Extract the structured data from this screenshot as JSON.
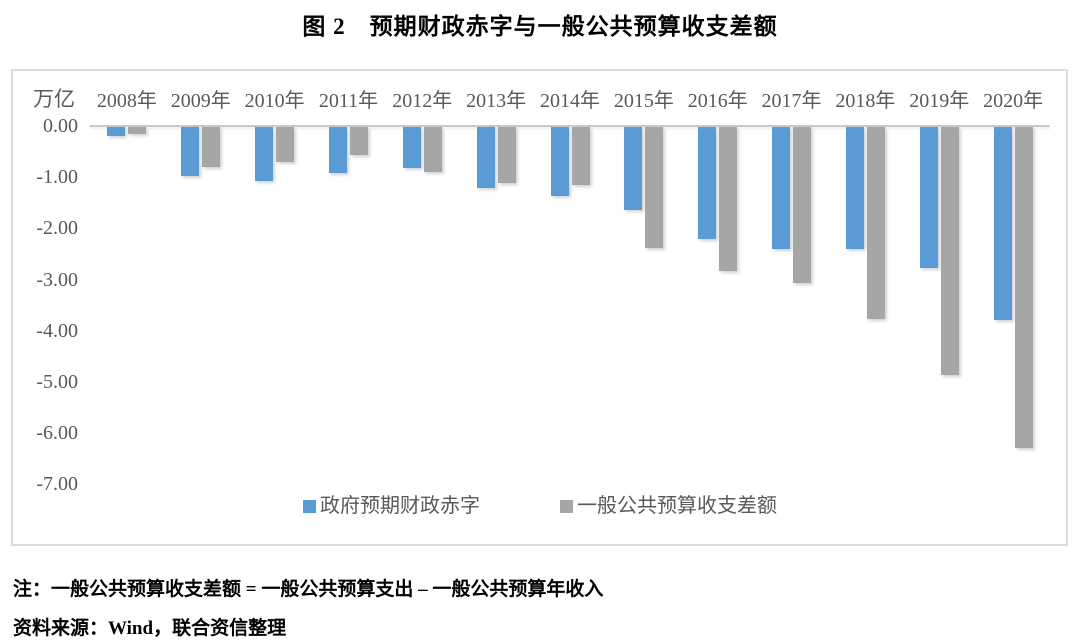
{
  "title": "图 2　预期财政赤字与一般公共预算收支差额",
  "chart_data": {
    "type": "bar",
    "orientation": "vertical-negative",
    "title": "图 2　预期财政赤字与一般公共预算收支差额",
    "unit_label": "万亿",
    "categories": [
      "2008年",
      "2009年",
      "2010年",
      "2011年",
      "2012年",
      "2013年",
      "2014年",
      "2015年",
      "2016年",
      "2017年",
      "2018年",
      "2019年",
      "2020年"
    ],
    "series": [
      {
        "key": "expected-deficit",
        "name": "政府预期财政赤字",
        "color": "#5B9BD5",
        "values": [
          -0.18,
          -0.95,
          -1.05,
          -0.9,
          -0.8,
          -1.2,
          -1.35,
          -1.62,
          -2.18,
          -2.38,
          -2.38,
          -2.76,
          -3.76
        ]
      },
      {
        "key": "budget-gap",
        "name": "一般公共预算收支差额",
        "color": "#A6A6A6",
        "values": [
          -0.13,
          -0.78,
          -0.68,
          -0.54,
          -0.87,
          -1.1,
          -1.13,
          -2.36,
          -2.82,
          -3.05,
          -3.75,
          -4.85,
          -6.27
        ]
      }
    ],
    "y_axis": {
      "ticks": [
        0,
        -1,
        -2,
        -3,
        -4,
        -5,
        -6,
        -7
      ],
      "tick_labels": [
        "0.00",
        "-1.00",
        "-2.00",
        "-3.00",
        "-4.00",
        "-5.00",
        "-6.00",
        "-7.00"
      ],
      "min": -7.6,
      "max": 0
    },
    "grid": false,
    "x_labels_position": "top",
    "legend_position": "bottom-inside"
  },
  "footnotes": {
    "note": "注：一般公共预算收支差额 = 一般公共预算支出 – 一般公共预算年收入",
    "source": "资料来源：Wind，联合资信整理"
  },
  "colors": {
    "series1": "#5B9BD5",
    "series2": "#A6A6A6",
    "axis_text": "#595959",
    "axis_line": "#C9C9C9",
    "frame_border": "#DCDCDC",
    "background": "#FFFFFF",
    "text": "#000000"
  }
}
